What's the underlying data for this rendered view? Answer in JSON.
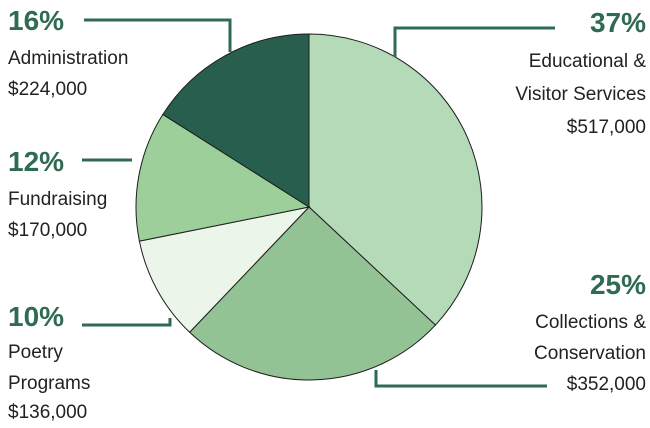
{
  "chart_data": {
    "type": "pie",
    "title": "",
    "slices": [
      {
        "percent": "37%",
        "label_lines": [
          "Educational &",
          "Visitor Services"
        ],
        "amount": "$517,000",
        "value": 517000,
        "color": "#b4dab7"
      },
      {
        "percent": "25%",
        "label_lines": [
          "Collections &",
          "Conservation"
        ],
        "amount": "$352,000",
        "value": 352000,
        "color": "#93c294"
      },
      {
        "percent": "10%",
        "label_lines": [
          "Poetry",
          "Programs"
        ],
        "amount": "$136,000",
        "value": 136000,
        "color": "#ecf5ea"
      },
      {
        "percent": "12%",
        "label_lines": [
          "Fundraising"
        ],
        "amount": "$170,000",
        "value": 170000,
        "color": "#9dcf9a"
      },
      {
        "percent": "16%",
        "label_lines": [
          "Administration"
        ],
        "amount": "$224,000",
        "value": 224000,
        "color": "#285e4d"
      }
    ],
    "leader_color": "#2f6a52",
    "legend": "none"
  }
}
